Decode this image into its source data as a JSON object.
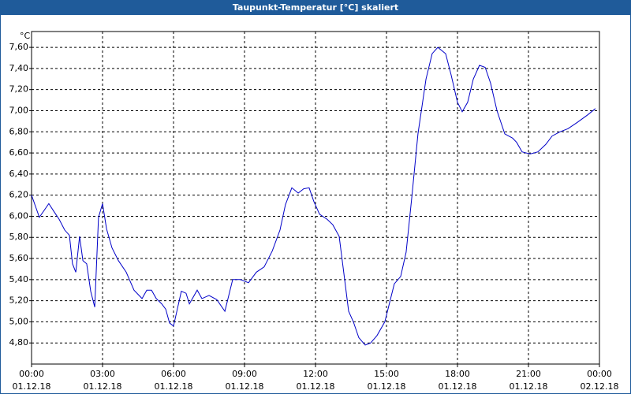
{
  "chart_data": {
    "type": "line",
    "title": "Taupunkt-Temperatur [°C] skaliert",
    "y_label": "°C",
    "color": "#0000c8",
    "grid": true,
    "x": [
      0,
      0.33,
      0.73,
      0.93,
      1.17,
      1.4,
      1.6,
      1.73,
      1.87,
      2.03,
      2.17,
      2.33,
      2.5,
      2.67,
      2.83,
      3.0,
      3.17,
      3.4,
      3.67,
      4.0,
      4.33,
      4.67,
      4.87,
      5.07,
      5.27,
      5.5,
      5.67,
      5.83,
      6.0,
      6.33,
      6.53,
      6.67,
      7.0,
      7.2,
      7.5,
      7.83,
      8.17,
      8.5,
      8.83,
      9.17,
      9.5,
      9.83,
      10.17,
      10.5,
      10.73,
      11.0,
      11.27,
      11.5,
      11.73,
      11.93,
      12.17,
      12.5,
      12.73,
      13.0,
      13.17,
      13.4,
      13.6,
      13.83,
      14.1,
      14.33,
      14.6,
      14.93,
      15.33,
      15.6,
      15.83,
      16.07,
      16.33,
      16.67,
      16.93,
      17.17,
      17.5,
      17.73,
      18.0,
      18.2,
      18.43,
      18.67,
      18.93,
      19.17,
      19.4,
      19.67,
      20.0,
      20.33,
      20.5,
      20.73,
      21.07,
      21.4,
      21.73,
      22.0,
      22.33,
      22.67,
      23.07,
      23.5,
      23.83
    ],
    "values": [
      6.2,
      5.99,
      6.12,
      6.05,
      5.97,
      5.87,
      5.82,
      5.55,
      5.47,
      5.81,
      5.58,
      5.55,
      5.29,
      5.14,
      5.99,
      6.12,
      5.88,
      5.7,
      5.58,
      5.47,
      5.3,
      5.22,
      5.3,
      5.3,
      5.22,
      5.17,
      5.12,
      4.99,
      4.96,
      5.29,
      5.27,
      5.17,
      5.3,
      5.22,
      5.25,
      5.21,
      5.1,
      5.4,
      5.4,
      5.37,
      5.47,
      5.52,
      5.67,
      5.87,
      6.11,
      6.27,
      6.22,
      6.26,
      6.27,
      6.14,
      6.02,
      5.97,
      5.92,
      5.81,
      5.51,
      5.1,
      5.0,
      4.85,
      4.78,
      4.8,
      4.87,
      5.0,
      5.36,
      5.43,
      5.66,
      6.18,
      6.78,
      7.3,
      7.54,
      7.6,
      7.54,
      7.34,
      7.08,
      6.99,
      7.08,
      7.3,
      7.43,
      7.41,
      7.26,
      7.0,
      6.78,
      6.74,
      6.7,
      6.61,
      6.59,
      6.61,
      6.68,
      6.76,
      6.8,
      6.83,
      6.89,
      6.96,
      7.02
    ],
    "xlim": [
      0,
      24
    ],
    "xticks": [
      {
        "value": 0,
        "label": "00:00",
        "date": "01.12.18"
      },
      {
        "value": 3,
        "label": "03:00",
        "date": "01.12.18"
      },
      {
        "value": 6,
        "label": "06:00",
        "date": "01.12.18"
      },
      {
        "value": 9,
        "label": "09:00",
        "date": "01.12.18"
      },
      {
        "value": 12,
        "label": "12:00",
        "date": "01.12.18"
      },
      {
        "value": 15,
        "label": "15:00",
        "date": "01.12.18"
      },
      {
        "value": 18,
        "label": "18:00",
        "date": "01.12.18"
      },
      {
        "value": 21,
        "label": "21:00",
        "date": "01.12.18"
      },
      {
        "value": 24,
        "label": "00:00",
        "date": "02.12.18"
      }
    ],
    "ylim": [
      4.6,
      7.75
    ],
    "yticks": [
      {
        "value": 4.8,
        "label": "4,80"
      },
      {
        "value": 5.0,
        "label": "5,00"
      },
      {
        "value": 5.2,
        "label": "5,20"
      },
      {
        "value": 5.4,
        "label": "5,40"
      },
      {
        "value": 5.6,
        "label": "5,60"
      },
      {
        "value": 5.8,
        "label": "5,80"
      },
      {
        "value": 6.0,
        "label": "6,00"
      },
      {
        "value": 6.2,
        "label": "6,20"
      },
      {
        "value": 6.4,
        "label": "6,40"
      },
      {
        "value": 6.6,
        "label": "6,60"
      },
      {
        "value": 6.8,
        "label": "6,80"
      },
      {
        "value": 7.0,
        "label": "7,00"
      },
      {
        "value": 7.2,
        "label": "7,20"
      },
      {
        "value": 7.4,
        "label": "7,40"
      },
      {
        "value": 7.6,
        "label": "7,60"
      }
    ]
  }
}
